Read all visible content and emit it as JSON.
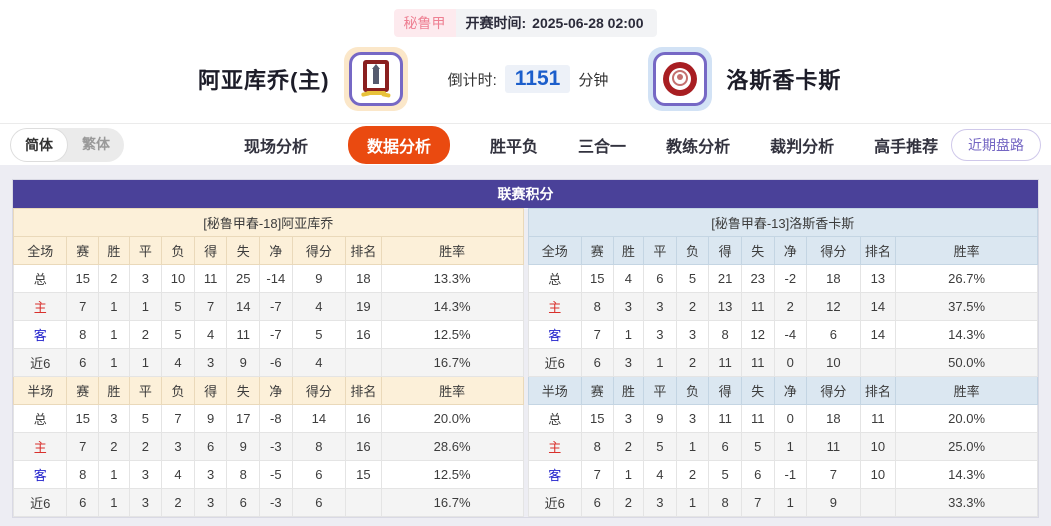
{
  "colors": {
    "accent_orange": "#ea4a10",
    "panel_purple": "#4a4199",
    "home_band": "#fcf0d9",
    "away_band": "#dbe7f1",
    "label_red": "#d9302c",
    "label_blue": "#2222cc",
    "countdown_blue": "#1c5ecb",
    "league_pink": "#ee8093"
  },
  "header": {
    "league_badge": "秘鲁甲",
    "kickoff_label": "开赛时间:",
    "kickoff_time": "2025-06-28 02:00",
    "home_team": "阿亚库乔(主)",
    "away_team": "洛斯香卡斯",
    "countdown_label": "倒计时:",
    "countdown_value": "1151",
    "countdown_unit": "分钟"
  },
  "nav": {
    "lang_simplified": "简体",
    "lang_traditional": "繁体",
    "tabs": [
      {
        "label": "现场分析",
        "active": false
      },
      {
        "label": "数据分析",
        "active": true
      },
      {
        "label": "胜平负",
        "active": false
      },
      {
        "label": "三合一",
        "active": false
      },
      {
        "label": "教练分析",
        "active": false
      },
      {
        "label": "裁判分析",
        "active": false
      },
      {
        "label": "高手推荐",
        "active": false
      }
    ],
    "recent_button": "近期盘路"
  },
  "table": {
    "title": "联赛积分",
    "columns_full": [
      "全场",
      "赛",
      "胜",
      "平",
      "负",
      "得",
      "失",
      "净",
      "得分",
      "排名",
      "胜率"
    ],
    "columns_half": [
      "半场",
      "赛",
      "胜",
      "平",
      "负",
      "得",
      "失",
      "净",
      "得分",
      "排名",
      "胜率"
    ],
    "home": {
      "header": "[秘鲁甲春-18]阿亚库乔",
      "full": [
        {
          "label": "总",
          "values": [
            "15",
            "2",
            "3",
            "10",
            "11",
            "25",
            "-14",
            "9",
            "18",
            "13.3%"
          ]
        },
        {
          "label": "主",
          "values": [
            "7",
            "1",
            "1",
            "5",
            "7",
            "14",
            "-7",
            "4",
            "19",
            "14.3%"
          ]
        },
        {
          "label": "客",
          "values": [
            "8",
            "1",
            "2",
            "5",
            "4",
            "11",
            "-7",
            "5",
            "16",
            "12.5%"
          ]
        },
        {
          "label": "近6",
          "values": [
            "6",
            "1",
            "1",
            "4",
            "3",
            "9",
            "-6",
            "4",
            "",
            "16.7%"
          ]
        }
      ],
      "half": [
        {
          "label": "总",
          "values": [
            "15",
            "3",
            "5",
            "7",
            "9",
            "17",
            "-8",
            "14",
            "16",
            "20.0%"
          ]
        },
        {
          "label": "主",
          "values": [
            "7",
            "2",
            "2",
            "3",
            "6",
            "9",
            "-3",
            "8",
            "16",
            "28.6%"
          ]
        },
        {
          "label": "客",
          "values": [
            "8",
            "1",
            "3",
            "4",
            "3",
            "8",
            "-5",
            "6",
            "15",
            "12.5%"
          ]
        },
        {
          "label": "近6",
          "values": [
            "6",
            "1",
            "3",
            "2",
            "3",
            "6",
            "-3",
            "6",
            "",
            "16.7%"
          ]
        }
      ]
    },
    "away": {
      "header": "[秘鲁甲春-13]洛斯香卡斯",
      "full": [
        {
          "label": "总",
          "values": [
            "15",
            "4",
            "6",
            "5",
            "21",
            "23",
            "-2",
            "18",
            "13",
            "26.7%"
          ]
        },
        {
          "label": "主",
          "values": [
            "8",
            "3",
            "3",
            "2",
            "13",
            "11",
            "2",
            "12",
            "14",
            "37.5%"
          ]
        },
        {
          "label": "客",
          "values": [
            "7",
            "1",
            "3",
            "3",
            "8",
            "12",
            "-4",
            "6",
            "14",
            "14.3%"
          ]
        },
        {
          "label": "近6",
          "values": [
            "6",
            "3",
            "1",
            "2",
            "11",
            "11",
            "0",
            "10",
            "",
            "50.0%"
          ]
        }
      ],
      "half": [
        {
          "label": "总",
          "values": [
            "15",
            "3",
            "9",
            "3",
            "11",
            "11",
            "0",
            "18",
            "11",
            "20.0%"
          ]
        },
        {
          "label": "主",
          "values": [
            "8",
            "2",
            "5",
            "1",
            "6",
            "5",
            "1",
            "11",
            "10",
            "25.0%"
          ]
        },
        {
          "label": "客",
          "values": [
            "7",
            "1",
            "4",
            "2",
            "5",
            "6",
            "-1",
            "7",
            "10",
            "14.3%"
          ]
        },
        {
          "label": "近6",
          "values": [
            "6",
            "2",
            "3",
            "1",
            "8",
            "7",
            "1",
            "9",
            "",
            "33.3%"
          ]
        }
      ]
    }
  }
}
